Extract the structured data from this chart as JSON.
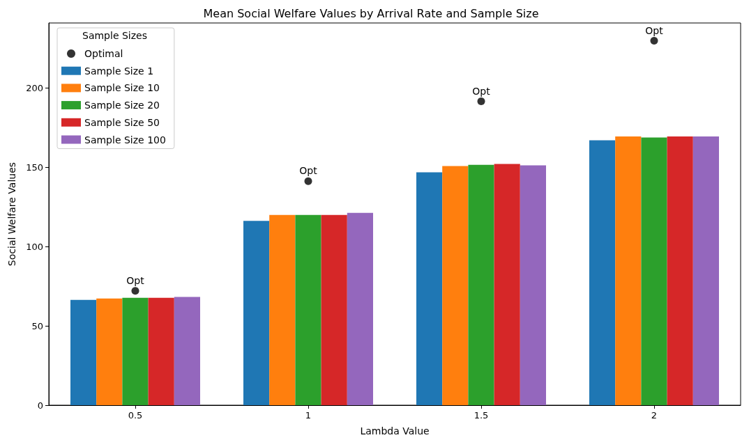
{
  "chart_data": {
    "type": "bar",
    "title": "Mean Social Welfare Values by Arrival Rate and Sample Size",
    "xlabel": "Lambda Value",
    "ylabel": "Social Welfare Values",
    "legend_title": "Sample Sizes",
    "categories": [
      "0.5",
      "1",
      "1.5",
      "2"
    ],
    "series": [
      {
        "name": "Optimal",
        "type": "scatter",
        "marker": "circle",
        "color": "#000000",
        "x": [
          "0.5",
          "1",
          "1.5",
          "2"
        ],
        "values": [
          72.1,
          141.2,
          191.6,
          229.8
        ]
      },
      {
        "name": "Sample Size 1",
        "color": "#1f77b4",
        "values": [
          66.4,
          116.2,
          146.8,
          167
        ]
      },
      {
        "name": "Sample Size 10",
        "color": "#ff7f0e",
        "values": [
          67.3,
          120,
          150.8,
          169.4
        ]
      },
      {
        "name": "Sample Size 20",
        "color": "#2ca02c",
        "values": [
          67.7,
          120,
          151.6,
          168.8
        ]
      },
      {
        "name": "Sample Size 50",
        "color": "#d62728",
        "values": [
          67.7,
          120,
          152.1,
          169.4
        ]
      },
      {
        "name": "Sample Size 100",
        "color": "#9467bd",
        "values": [
          68.3,
          121.3,
          151.2,
          169.4
        ]
      }
    ],
    "annotations": [
      {
        "text": "Opt",
        "x": "0.5",
        "y": 72.1
      },
      {
        "text": "Opt",
        "x": "1",
        "y": 141.2
      },
      {
        "text": "Opt",
        "x": "1.5",
        "y": 191.6
      },
      {
        "text": "Opt",
        "x": "2",
        "y": 229.8
      }
    ],
    "ylim": [
      0,
      241
    ],
    "yticks": [
      0,
      50,
      100,
      150,
      200
    ],
    "grid": false,
    "legend": "top left"
  }
}
